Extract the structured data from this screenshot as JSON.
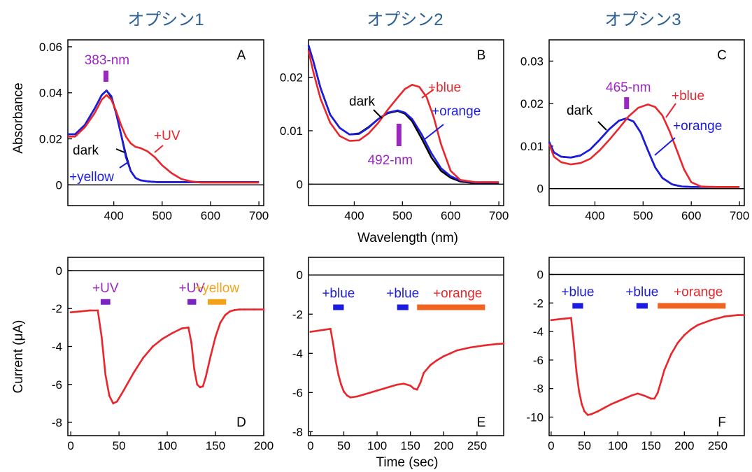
{
  "colors": {
    "dark": "#000000",
    "red": "#e8262b",
    "blue": "#1c1ce0",
    "purple": "#9b27c2",
    "orange_bar": "#f26322",
    "yellow_text": "#f5a21b",
    "title": "#2e5f93",
    "uv_bar": "#7a24c2",
    "blue_bar": "#1c1ce0"
  },
  "titles": [
    "オプシン1",
    "オプシン2",
    "オプシン3"
  ],
  "shared_labels": {
    "absorbance": "Absorbance",
    "wavelength": "Wavelength (nm)",
    "current": "Current (μA)",
    "time": "Time (sec)"
  },
  "chart_data": [
    {
      "panel": "A",
      "type": "line",
      "xlabel": "",
      "ylabel": "Absorbance",
      "xlim": [
        305,
        710
      ],
      "ylim": [
        -0.009,
        0.063
      ],
      "xticks": [
        400,
        500,
        600,
        700
      ],
      "yticks": [
        0,
        0.02,
        0.04,
        0.06
      ],
      "ytick_labels": [
        "0",
        "0.02",
        "0.04",
        "0.06"
      ],
      "zero_line": true,
      "series": [
        {
          "name": "dark",
          "color": "#000000",
          "x": [
            305,
            320,
            340,
            360,
            375,
            385,
            395,
            405,
            415,
            425,
            435,
            445,
            455,
            470,
            490,
            520,
            560,
            600,
            650,
            700
          ],
          "y": [
            0.022,
            0.022,
            0.026,
            0.033,
            0.039,
            0.041,
            0.038,
            0.031,
            0.022,
            0.013,
            0.006,
            0.003,
            0.002,
            0.0015,
            0.0012,
            0.0012,
            0.0012,
            0.0012,
            0.0012,
            0.0012
          ]
        },
        {
          "name": "+yellow",
          "color": "#1c1ce0",
          "x": [
            305,
            320,
            340,
            360,
            375,
            385,
            395,
            405,
            415,
            425,
            435,
            445,
            455,
            470,
            490,
            520,
            560,
            600,
            650,
            700
          ],
          "y": [
            0.022,
            0.022,
            0.026,
            0.033,
            0.039,
            0.041,
            0.0385,
            0.031,
            0.022,
            0.012,
            0.006,
            0.003,
            0.002,
            0.0015,
            0.0012,
            0.0012,
            0.0012,
            0.0012,
            0.0012,
            0.0012
          ]
        },
        {
          "name": "+UV",
          "color": "#e8262b",
          "x": [
            305,
            320,
            340,
            360,
            375,
            385,
            395,
            405,
            415,
            425,
            435,
            445,
            455,
            470,
            485,
            500,
            520,
            540,
            560,
            580,
            600,
            650,
            700
          ],
          "y": [
            0.021,
            0.021,
            0.025,
            0.031,
            0.037,
            0.039,
            0.037,
            0.032,
            0.026,
            0.021,
            0.018,
            0.0165,
            0.016,
            0.0145,
            0.012,
            0.0085,
            0.005,
            0.0025,
            0.0015,
            0.001,
            0.001,
            0.001,
            0.001
          ]
        }
      ],
      "annotations": {
        "peak_label": "383-nm",
        "peak_x": 383,
        "dark": "dark",
        "uv": "+UV",
        "yellow": "+yellow",
        "letter": "A"
      }
    },
    {
      "panel": "B",
      "type": "line",
      "xlabel": "Wavelength (nm)",
      "ylabel": "",
      "xlim": [
        305,
        710
      ],
      "ylim": [
        -0.004,
        0.027
      ],
      "xticks": [
        400,
        500,
        600,
        700
      ],
      "yticks": [
        0,
        0.01,
        0.02
      ],
      "ytick_labels": [
        "0",
        "0.01",
        "0.02"
      ],
      "zero_line": true,
      "series": [
        {
          "name": "dark",
          "color": "#000000",
          "x": [
            305,
            315,
            330,
            350,
            370,
            390,
            410,
            430,
            450,
            470,
            490,
            505,
            520,
            540,
            560,
            580,
            600,
            620,
            650,
            700
          ],
          "y": [
            0.026,
            0.023,
            0.018,
            0.013,
            0.0105,
            0.0093,
            0.0095,
            0.0107,
            0.0122,
            0.0133,
            0.0137,
            0.0132,
            0.0118,
            0.0085,
            0.005,
            0.0025,
            0.0012,
            0.0005,
            0.0002,
            0.0002
          ]
        },
        {
          "name": "+orange",
          "color": "#1c1ce0",
          "x": [
            305,
            315,
            330,
            350,
            370,
            390,
            410,
            430,
            450,
            470,
            490,
            505,
            520,
            540,
            560,
            580,
            600,
            620,
            650,
            700
          ],
          "y": [
            0.026,
            0.023,
            0.018,
            0.013,
            0.0105,
            0.0093,
            0.0094,
            0.0106,
            0.0122,
            0.0134,
            0.0138,
            0.0134,
            0.0122,
            0.0093,
            0.0058,
            0.003,
            0.0015,
            0.0007,
            0.0003,
            0.0003
          ]
        },
        {
          "name": "+blue",
          "color": "#e8262b",
          "x": [
            305,
            315,
            330,
            350,
            370,
            390,
            410,
            430,
            450,
            470,
            490,
            505,
            520,
            535,
            550,
            565,
            580,
            600,
            620,
            650,
            700
          ],
          "y": [
            0.025,
            0.021,
            0.016,
            0.0115,
            0.009,
            0.0081,
            0.0082,
            0.0095,
            0.0115,
            0.014,
            0.0162,
            0.0178,
            0.0186,
            0.0182,
            0.0163,
            0.0125,
            0.0075,
            0.0025,
            0.0008,
            0.0004,
            0.0004
          ]
        }
      ],
      "annotations": {
        "peak_label": "492-nm",
        "peak_x": 492,
        "dark": "dark",
        "blue": "+blue",
        "orange": "+orange",
        "letter": "B"
      }
    },
    {
      "panel": "C",
      "type": "line",
      "xlabel": "",
      "ylabel": "",
      "xlim": [
        305,
        710
      ],
      "ylim": [
        -0.004,
        0.035
      ],
      "xticks": [
        400,
        500,
        600,
        700
      ],
      "yticks": [
        0,
        0.01,
        0.02,
        0.03
      ],
      "ytick_labels": [
        "0",
        "0.01",
        "0.02",
        "0.03"
      ],
      "zero_line": true,
      "series": [
        {
          "name": "dark",
          "color": "#000000",
          "x": [
            305,
            315,
            330,
            350,
            370,
            390,
            410,
            430,
            450,
            465,
            480,
            495,
            510,
            525,
            540,
            560,
            580,
            600,
            650,
            700
          ],
          "y": [
            0.011,
            0.0085,
            0.0075,
            0.0073,
            0.0078,
            0.0092,
            0.0115,
            0.014,
            0.016,
            0.0165,
            0.0158,
            0.0132,
            0.009,
            0.005,
            0.0025,
            0.001,
            0.0005,
            0.0004,
            0.0004,
            0.0004
          ]
        },
        {
          "name": "+orange",
          "color": "#1c1ce0",
          "x": [
            305,
            315,
            330,
            350,
            370,
            390,
            410,
            430,
            450,
            465,
            480,
            495,
            510,
            525,
            540,
            560,
            580,
            600,
            650,
            700
          ],
          "y": [
            0.011,
            0.0085,
            0.0075,
            0.0073,
            0.0078,
            0.0092,
            0.0115,
            0.014,
            0.016,
            0.0165,
            0.0158,
            0.0132,
            0.009,
            0.005,
            0.0025,
            0.001,
            0.0005,
            0.0004,
            0.0004,
            0.0004
          ]
        },
        {
          "name": "+blue",
          "color": "#e8262b",
          "x": [
            305,
            315,
            330,
            350,
            370,
            390,
            410,
            430,
            450,
            470,
            490,
            510,
            525,
            540,
            555,
            570,
            585,
            600,
            620,
            650,
            700
          ],
          "y": [
            0.0105,
            0.0075,
            0.0062,
            0.0057,
            0.006,
            0.007,
            0.009,
            0.0115,
            0.0142,
            0.017,
            0.019,
            0.0198,
            0.0192,
            0.0172,
            0.0135,
            0.009,
            0.0045,
            0.0015,
            0.0005,
            0.0004,
            0.0004
          ]
        }
      ],
      "annotations": {
        "peak_label": "465-nm",
        "peak_x": 465,
        "dark": "dark",
        "blue": "+blue",
        "orange": "+orange",
        "letter": "C"
      }
    },
    {
      "panel": "D",
      "type": "line",
      "xlabel": "",
      "ylabel": "Current (μA)",
      "xlim": [
        -3,
        200
      ],
      "ylim": [
        -8.7,
        0.7
      ],
      "xticks": [
        0,
        50,
        100,
        150,
        200
      ],
      "yticks": [
        0,
        -2,
        -4,
        -6,
        -8
      ],
      "ytick_labels": [
        "0",
        "-2",
        "-4",
        "-6",
        "-8"
      ],
      "zero_line": true,
      "series": [
        {
          "name": "current",
          "color": "#e8262b",
          "x": [
            0,
            10,
            20,
            28,
            32,
            36,
            40,
            44,
            48,
            55,
            65,
            75,
            85,
            95,
            105,
            115,
            122,
            125,
            128,
            131,
            134,
            137,
            140,
            145,
            150,
            155,
            160,
            165,
            170,
            175,
            180,
            190,
            200
          ],
          "y": [
            -2.2,
            -2.15,
            -2.1,
            -2.1,
            -3.5,
            -5.5,
            -6.6,
            -7.0,
            -6.9,
            -6.3,
            -5.4,
            -4.6,
            -4.0,
            -3.6,
            -3.3,
            -3.05,
            -3.0,
            -3.8,
            -5.2,
            -6.0,
            -6.15,
            -6.1,
            -5.6,
            -4.5,
            -3.5,
            -2.75,
            -2.35,
            -2.15,
            -2.08,
            -2.05,
            -2.05,
            -2.05,
            -2.05
          ]
        }
      ],
      "stimuli": [
        {
          "label": "+UV",
          "start": 31,
          "end": 41,
          "y": -1.65,
          "color": "#7a24c2",
          "text_color": "#9b27c2"
        },
        {
          "label": "+UV",
          "start": 121,
          "end": 130,
          "y": -1.65,
          "color": "#7a24c2",
          "text_color": "#9b27c2"
        },
        {
          "label": "+yellow",
          "start": 142,
          "end": 161,
          "y": -1.65,
          "color": "#f5a21b",
          "text_color": "#f5a21b"
        }
      ],
      "letter": "D"
    },
    {
      "panel": "E",
      "type": "line",
      "xlabel": "Time (sec)",
      "ylabel": "",
      "xlim": [
        -3,
        290
      ],
      "ylim": [
        -8.2,
        0.9
      ],
      "xticks": [
        0,
        50,
        100,
        150,
        200,
        250
      ],
      "yticks": [
        0,
        -2,
        -4,
        -6,
        -8
      ],
      "ytick_labels": [
        "0",
        "-2",
        "-4",
        "-6",
        "-8"
      ],
      "zero_line": true,
      "series": [
        {
          "name": "current",
          "color": "#e8262b",
          "x": [
            0,
            10,
            20,
            30,
            34,
            38,
            42,
            46,
            50,
            55,
            60,
            70,
            80,
            90,
            100,
            110,
            120,
            130,
            140,
            150,
            155,
            160,
            165,
            170,
            180,
            190,
            200,
            210,
            220,
            240,
            260,
            280,
            290
          ],
          "y": [
            -2.9,
            -2.85,
            -2.8,
            -2.75,
            -3.5,
            -4.4,
            -5.1,
            -5.6,
            -5.95,
            -6.15,
            -6.25,
            -6.2,
            -6.1,
            -6.0,
            -5.9,
            -5.8,
            -5.7,
            -5.6,
            -5.55,
            -5.65,
            -5.8,
            -5.85,
            -5.5,
            -5.0,
            -4.6,
            -4.35,
            -4.15,
            -4.0,
            -3.85,
            -3.7,
            -3.6,
            -3.52,
            -3.5
          ]
        }
      ],
      "stimuli": [
        {
          "label": "+blue",
          "start": 34,
          "end": 50,
          "y": -1.65,
          "color": "#1c1ce0",
          "text_color": "#1c1ce0"
        },
        {
          "label": "+blue",
          "start": 130,
          "end": 147,
          "y": -1.65,
          "color": "#1c1ce0",
          "text_color": "#1c1ce0"
        },
        {
          "label": "+orange",
          "start": 160,
          "end": 262,
          "y": -1.65,
          "color": "#f26322",
          "text_color": "#e8262b"
        }
      ],
      "letter": "E"
    },
    {
      "panel": "F",
      "type": "line",
      "xlabel": "",
      "ylabel": "",
      "xlim": [
        -3,
        290
      ],
      "ylim": [
        -11.3,
        1.2
      ],
      "xticks": [
        0,
        50,
        100,
        150,
        200,
        250
      ],
      "yticks": [
        0,
        -2,
        -4,
        -6,
        -8,
        -10
      ],
      "ytick_labels": [
        "0",
        "-2",
        "-4",
        "-6",
        "-8",
        "-10"
      ],
      "zero_line": true,
      "series": [
        {
          "name": "current",
          "color": "#e8262b",
          "x": [
            0,
            10,
            20,
            30,
            34,
            38,
            42,
            46,
            50,
            55,
            60,
            70,
            80,
            90,
            100,
            110,
            120,
            130,
            140,
            150,
            155,
            160,
            165,
            170,
            180,
            190,
            200,
            210,
            220,
            240,
            260,
            280,
            290
          ],
          "y": [
            -3.2,
            -3.15,
            -3.1,
            -3.05,
            -4.8,
            -6.8,
            -8.2,
            -9.1,
            -9.6,
            -9.85,
            -9.8,
            -9.6,
            -9.35,
            -9.1,
            -8.9,
            -8.7,
            -8.5,
            -8.35,
            -8.5,
            -8.7,
            -8.7,
            -8.3,
            -7.5,
            -6.7,
            -5.6,
            -4.8,
            -4.25,
            -3.85,
            -3.55,
            -3.2,
            -2.95,
            -2.85,
            -2.85
          ]
        }
      ],
      "stimuli": [
        {
          "label": "+blue",
          "start": 32,
          "end": 48,
          "y": -2.2,
          "color": "#1c1ce0",
          "text_color": "#1c1ce0"
        },
        {
          "label": "+blue",
          "start": 128,
          "end": 145,
          "y": -2.2,
          "color": "#1c1ce0",
          "text_color": "#1c1ce0"
        },
        {
          "label": "+orange",
          "start": 160,
          "end": 262,
          "y": -2.2,
          "color": "#f26322",
          "text_color": "#e8262b"
        }
      ],
      "letter": "F"
    }
  ]
}
